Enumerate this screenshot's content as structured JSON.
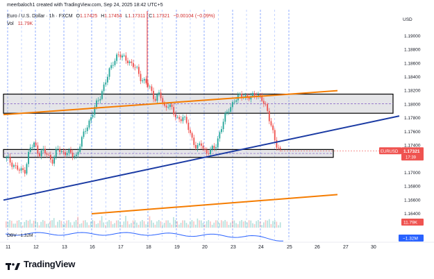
{
  "header": {
    "author_line": "meerbaloch1 created with TradingView.com, Sep 24, 2025 18:42 UTC+5",
    "symbol": "Euro / U.S. Dollar · 1h · FXCM",
    "ohlc": [
      {
        "label": "O",
        "value": "1.17425"
      },
      {
        "label": "H",
        "value": "1.17454"
      },
      {
        "label": "L",
        "value": "1.17311"
      },
      {
        "label": "C",
        "value": "1.17321"
      }
    ],
    "change": "−0.00104 (−0.09%)",
    "vol_label": "Vol",
    "vol_value": "11.79K"
  },
  "price_axis": {
    "currency": "USD",
    "ticks": [
      "1.19000",
      "1.18800",
      "1.18600",
      "1.18400",
      "1.18200",
      "1.18000",
      "1.17800",
      "1.17600",
      "1.17400",
      "1.17000",
      "1.16800",
      "1.16600",
      "1.16400"
    ]
  },
  "time_axis": {
    "ticks": [
      "11",
      "12",
      "13",
      "16",
      "17",
      "18",
      "19",
      "20",
      "23",
      "24",
      "25",
      "26",
      "27",
      "30"
    ]
  },
  "price_tag": {
    "symbol": "EURUSD",
    "price": "1.17321",
    "countdown": "17:39"
  },
  "vol_tag": "11.79K",
  "obv": {
    "label": "OBV",
    "value": "−1.32M",
    "tag": "−1.32M"
  },
  "brand": "TradingView",
  "colors": {
    "up": "#26a69a",
    "down": "#ef5350",
    "orange": "#f57c00",
    "blue": "#1a3aa3",
    "grid": "#2962ff",
    "obv": "#2962ff"
  },
  "chart_data": {
    "type": "candlestick",
    "series": [
      {
        "name": "EURUSD",
        "values_note": "1h candles, close path",
        "closes": [
          1.1721,
          1.1715,
          1.1708,
          1.1702,
          1.1704,
          1.1735,
          1.1742,
          1.1728,
          1.1732,
          1.1724,
          1.1718,
          1.1735,
          1.1729,
          1.1731,
          1.1726,
          1.1724,
          1.1745,
          1.1762,
          1.1778,
          1.1795,
          1.1808,
          1.1828,
          1.1845,
          1.1862,
          1.1874,
          1.1868,
          1.1866,
          1.1858,
          1.1852,
          1.1838,
          1.1832,
          1.1822,
          1.1808,
          1.1816,
          1.1795,
          1.1802,
          1.1786,
          1.1778,
          1.1782,
          1.1769,
          1.175,
          1.1735,
          1.1742,
          1.1729,
          1.1732,
          1.1738,
          1.176,
          1.178,
          1.1795,
          1.1804,
          1.1811,
          1.1815,
          1.1808,
          1.1812,
          1.1817,
          1.1806,
          1.1795,
          1.1772,
          1.174,
          1.1732
        ]
      }
    ],
    "zones": [
      {
        "name": "upper-zone",
        "top": 1.1815,
        "bottom": 1.1787
      },
      {
        "name": "lower-zone",
        "top": 1.1734,
        "bottom": 1.17225
      }
    ],
    "trendlines": [
      {
        "name": "upper-orange",
        "from": {
          "day": "11",
          "price": 1.1785
        },
        "to": {
          "day": "26",
          "price": 1.182
        }
      },
      {
        "name": "blue-support",
        "from": {
          "day": "11",
          "price": 1.166
        },
        "to": {
          "day": "30",
          "price": 1.1783
        }
      },
      {
        "name": "lower-orange",
        "from": {
          "day": "16",
          "price": 1.164
        },
        "to": {
          "day": "26",
          "price": 1.1668
        }
      }
    ],
    "ylim": [
      1.164,
      1.191
    ]
  }
}
